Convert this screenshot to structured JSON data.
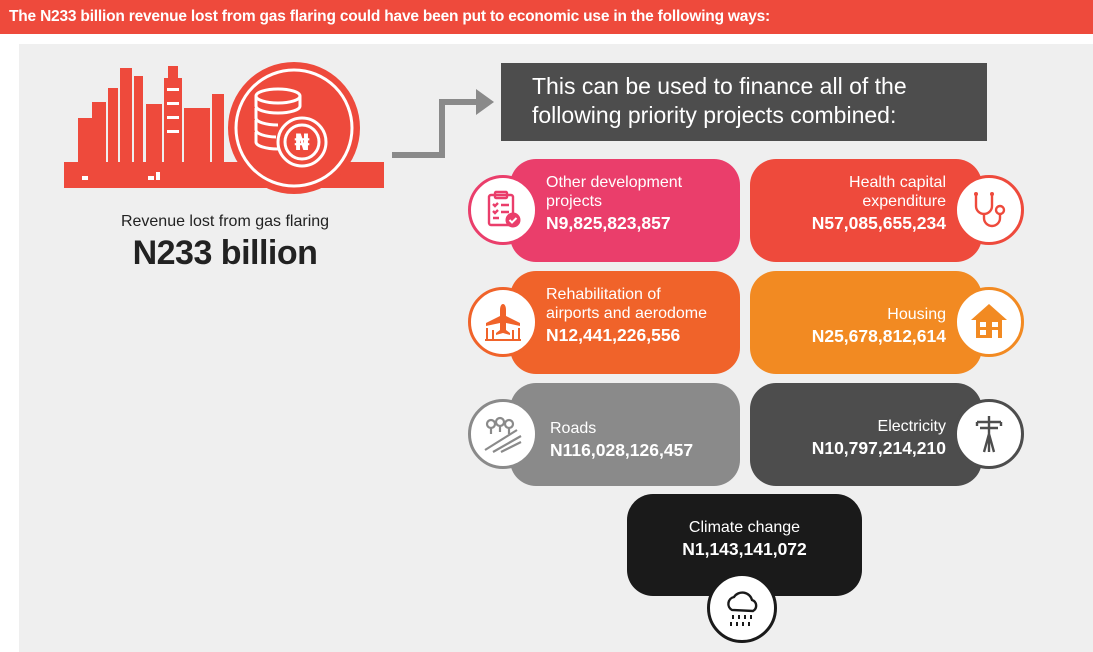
{
  "banner": {
    "text": "The N233 billion revenue lost from gas flaring could have been put to economic use in the following ways:"
  },
  "left": {
    "label": "Revenue lost from gas flaring",
    "value": "N233 billion",
    "currency_symbol": "₦",
    "illustration": "factory-icon"
  },
  "header": {
    "line1": "This can be used to finance all of the",
    "line2": "following priority projects combined:"
  },
  "projects": [
    {
      "line1": "Other development",
      "line2": "projects",
      "amount": "N9,825,823,857",
      "icon": "clipboard-checklist-icon",
      "color": "#ea3e6b"
    },
    {
      "line1": "Health capital",
      "line2": "expenditure",
      "amount": "N57,085,655,234",
      "icon": "stethoscope-icon",
      "color": "#ee4a3c"
    },
    {
      "line1": "Rehabilitation of",
      "line2": "airports and aerodome",
      "amount": "N12,441,226,556",
      "icon": "airport-icon",
      "color": "#f0632a"
    },
    {
      "line1": "Housing",
      "amount": "N25,678,812,614",
      "icon": "house-icon",
      "color": "#f28a22"
    },
    {
      "line1": "Roads",
      "amount": "N116,028,126,457",
      "icon": "road-icon",
      "color": "#8a8a8a"
    },
    {
      "line1": "Electricity",
      "amount": "N10,797,214,210",
      "icon": "power-pylon-icon",
      "color": "#4d4d4d"
    }
  ],
  "climate": {
    "name": "Climate change",
    "amount": "N1,143,141,072",
    "icon": "rain-cloud-icon",
    "color": "#1a1a1a"
  },
  "colors": {
    "banner": "#ee4a3c",
    "panel": "#efefef",
    "header_box": "#4d4d4d"
  }
}
